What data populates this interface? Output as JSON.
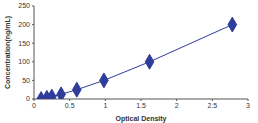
{
  "chart_data": {
    "type": "line",
    "x_label": "Optical Density",
    "y_label": "Concentration(ng/mL)",
    "x": [
      0.1,
      0.18,
      0.25,
      0.38,
      0.6,
      0.98,
      1.62,
      2.78
    ],
    "values": [
      0,
      3.1,
      6.3,
      12.5,
      25,
      50,
      100,
      200
    ],
    "color": "#2e3d9a",
    "marker": "diamond",
    "xlim": [
      0,
      3
    ],
    "xticks": [
      0,
      0.5,
      1,
      1.5,
      2,
      2.5,
      3
    ],
    "ylim": [
      0,
      250
    ],
    "yticks": [
      0,
      50,
      100,
      150,
      200,
      250
    ],
    "grid": false
  }
}
